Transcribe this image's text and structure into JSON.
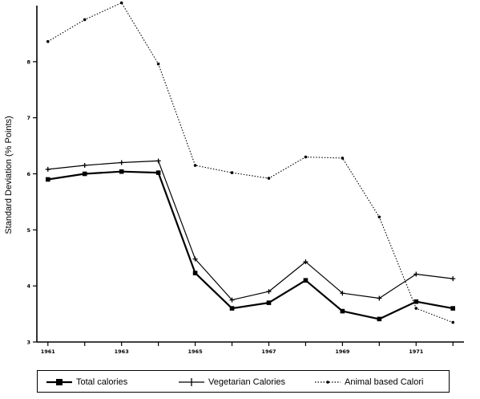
{
  "chart_data": {
    "type": "line",
    "title": "",
    "xlabel": "",
    "ylabel": "Standard Deviation (% Points)",
    "x": [
      1961,
      1962,
      1963,
      1964,
      1965,
      1966,
      1967,
      1968,
      1969,
      1970,
      1971,
      1972
    ],
    "xticks": [
      "1961",
      "1963",
      "1965",
      "1967",
      "1969",
      "1971"
    ],
    "xtick_values": [
      1961,
      1963,
      1965,
      1967,
      1969,
      1971
    ],
    "yticks": [
      "3",
      "4",
      "5",
      "6",
      "7",
      "8"
    ],
    "ylim": [
      3,
      9
    ],
    "xlim": [
      1960.7,
      1972.3
    ],
    "grid": false,
    "legend_position": "bottom",
    "series": [
      {
        "name": "Total calories",
        "style": "solid-bold",
        "marker": "square",
        "values": [
          5.9,
          6.0,
          6.04,
          6.02,
          4.23,
          3.6,
          3.7,
          4.1,
          3.55,
          3.41,
          3.72,
          3.6
        ]
      },
      {
        "name": "Vegetarian Calories",
        "style": "solid",
        "marker": "plus",
        "values": [
          6.08,
          6.15,
          6.2,
          6.23,
          4.48,
          3.75,
          3.9,
          4.43,
          3.87,
          3.78,
          4.21,
          4.13
        ]
      },
      {
        "name": "Animal based Calori",
        "style": "dotted",
        "marker": "dot",
        "values": [
          8.36,
          8.75,
          9.05,
          7.96,
          6.15,
          6.02,
          5.92,
          6.3,
          6.28,
          5.23,
          3.6,
          3.35
        ]
      }
    ]
  }
}
